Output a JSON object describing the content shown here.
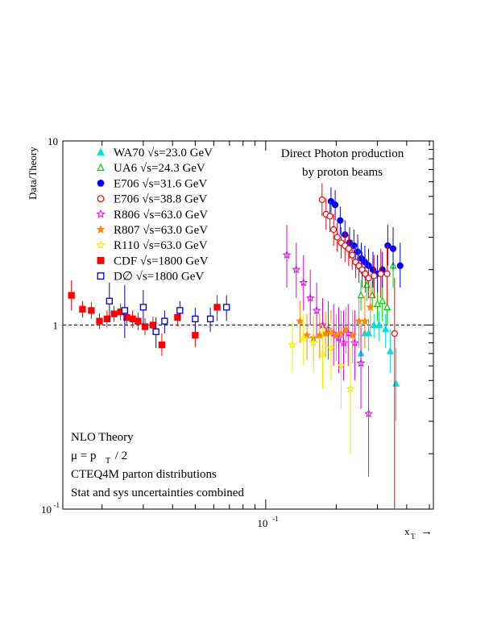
{
  "chart_data": {
    "type": "scatter",
    "title_lines": [
      "Direct Photon production",
      "by proton beams"
    ],
    "xlabel": "x",
    "xlabel_sub": "T",
    "xlabel_arrow": "→",
    "ylabel": "Data/Theory",
    "x_scale": "log",
    "y_scale": "log",
    "xlim": [
      0.0136,
      0.52
    ],
    "ylim": [
      0.1,
      10
    ],
    "y_ticks": [
      {
        "value": 10,
        "base": "10",
        "exp": ""
      },
      {
        "value": 1,
        "base": "1",
        "exp": ""
      },
      {
        "value": 0.1,
        "base": "10",
        "exp": "-1"
      }
    ],
    "x_ticks": [
      {
        "value": 0.1,
        "base": "10",
        "exp": "-1"
      }
    ],
    "reference_line": 1,
    "colors": {
      "cyan": "#00e0e0",
      "green": "#00cc00",
      "blue": "#0000ff",
      "red": "#ff0000",
      "magenta": "#dd00dd",
      "orange": "#ff8800",
      "yellow": "#eeee00",
      "darkblue": "#0000cc"
    },
    "annotations": [
      "NLO Theory",
      "μ = p",
      "T",
      " / 2",
      "CTEQ4M parton distributions",
      "Stat and sys uncertainties combined"
    ],
    "series": [
      {
        "name": "WA70 √s=23.0 GeV",
        "marker": "triangle",
        "filled": true,
        "color": "#00e0e0",
        "points": [
          [
            0.255,
            0.7,
            0.55,
            0.88
          ],
          [
            0.265,
            0.9,
            0.75,
            1.05
          ],
          [
            0.275,
            0.9,
            0.72,
            1.08
          ],
          [
            0.29,
            1.0,
            0.85,
            1.15
          ],
          [
            0.305,
            1.0,
            0.82,
            1.2
          ],
          [
            0.325,
            0.95,
            0.75,
            1.15
          ],
          [
            0.34,
            0.72,
            0.55,
            0.95
          ],
          [
            0.36,
            0.48,
            0.3,
            0.75
          ]
        ]
      },
      {
        "name": "UA6 √s=24.3 GeV",
        "marker": "triangle",
        "filled": false,
        "color": "#00cc00",
        "points": [
          [
            0.255,
            1.45,
            1.2,
            1.75
          ],
          [
            0.27,
            1.65,
            1.35,
            2.0
          ],
          [
            0.285,
            1.45,
            1.2,
            1.75
          ],
          [
            0.3,
            1.3,
            1.05,
            1.6
          ],
          [
            0.315,
            1.35,
            1.05,
            1.7
          ],
          [
            0.33,
            1.25,
            1.0,
            1.55
          ],
          [
            0.35,
            2.1,
            1.6,
            2.7
          ]
        ]
      },
      {
        "name": "E706 √s=31.6 GeV",
        "marker": "circle",
        "filled": true,
        "color": "#0000ff",
        "points": [
          [
            0.19,
            4.7,
            3.9,
            5.6
          ],
          [
            0.198,
            4.5,
            3.7,
            5.4
          ],
          [
            0.208,
            3.7,
            3.1,
            4.4
          ],
          [
            0.218,
            3.1,
            2.6,
            3.7
          ],
          [
            0.228,
            2.8,
            2.3,
            3.4
          ],
          [
            0.238,
            2.7,
            2.2,
            3.3
          ],
          [
            0.247,
            2.5,
            2.0,
            3.1
          ],
          [
            0.256,
            2.3,
            1.9,
            2.8
          ],
          [
            0.265,
            2.2,
            1.8,
            2.7
          ],
          [
            0.275,
            2.1,
            1.7,
            2.6
          ],
          [
            0.287,
            2.0,
            1.6,
            2.5
          ],
          [
            0.3,
            1.9,
            1.5,
            2.4
          ],
          [
            0.315,
            2.0,
            1.6,
            2.5
          ],
          [
            0.332,
            2.7,
            2.1,
            3.5
          ],
          [
            0.35,
            2.6,
            2.0,
            3.4
          ],
          [
            0.375,
            2.1,
            1.6,
            2.8
          ]
        ]
      },
      {
        "name": "E706 √s=38.8 GeV",
        "marker": "circle",
        "filled": false,
        "color": "#ff0000",
        "points": [
          [
            0.174,
            4.8,
            3.9,
            5.9
          ],
          [
            0.181,
            4.0,
            3.3,
            4.9
          ],
          [
            0.188,
            3.9,
            3.2,
            4.7
          ],
          [
            0.195,
            3.3,
            2.7,
            4.0
          ],
          [
            0.202,
            3.0,
            2.5,
            3.6
          ],
          [
            0.21,
            2.8,
            2.3,
            3.4
          ],
          [
            0.218,
            2.7,
            2.2,
            3.2
          ],
          [
            0.226,
            2.6,
            2.1,
            3.1
          ],
          [
            0.234,
            2.4,
            2.0,
            2.9
          ],
          [
            0.242,
            2.2,
            1.8,
            2.7
          ],
          [
            0.25,
            2.1,
            1.7,
            2.6
          ],
          [
            0.258,
            2.0,
            1.6,
            2.5
          ],
          [
            0.266,
            1.9,
            1.5,
            2.4
          ],
          [
            0.275,
            1.8,
            1.4,
            2.3
          ],
          [
            0.29,
            1.85,
            1.4,
            2.4
          ],
          [
            0.31,
            1.9,
            1.4,
            2.6
          ],
          [
            0.33,
            1.9,
            1.3,
            2.7
          ],
          [
            0.355,
            0.9,
            0.1,
            1.8
          ]
        ]
      },
      {
        "name": "R806 √s=63.0 GeV",
        "marker": "star",
        "filled": false,
        "color": "#dd00dd",
        "points": [
          [
            0.123,
            2.4,
            1.6,
            3.5
          ],
          [
            0.135,
            2.0,
            1.4,
            2.8
          ],
          [
            0.145,
            1.7,
            1.2,
            2.4
          ],
          [
            0.155,
            1.4,
            1.0,
            2.0
          ],
          [
            0.165,
            1.2,
            0.85,
            1.7
          ],
          [
            0.175,
            1.0,
            0.7,
            1.4
          ],
          [
            0.185,
            0.95,
            0.65,
            1.35
          ],
          [
            0.195,
            0.9,
            0.6,
            1.3
          ],
          [
            0.205,
            0.85,
            0.55,
            1.25
          ],
          [
            0.215,
            0.8,
            0.5,
            1.2
          ],
          [
            0.225,
            0.9,
            0.6,
            1.3
          ],
          [
            0.24,
            0.8,
            0.5,
            1.2
          ],
          [
            0.255,
            0.62,
            0.35,
            1.0
          ],
          [
            0.275,
            0.33,
            0.15,
            0.6
          ]
        ]
      },
      {
        "name": "R807 √s=63.0 GeV",
        "marker": "star",
        "filled": true,
        "color": "#ff8800",
        "points": [
          [
            0.14,
            1.05,
            0.8,
            1.35
          ],
          [
            0.15,
            0.88,
            0.65,
            1.15
          ],
          [
            0.16,
            0.85,
            0.62,
            1.12
          ],
          [
            0.17,
            0.88,
            0.66,
            1.15
          ],
          [
            0.18,
            0.9,
            0.67,
            1.18
          ],
          [
            0.19,
            0.92,
            0.68,
            1.2
          ],
          [
            0.2,
            0.88,
            0.64,
            1.15
          ],
          [
            0.21,
            0.9,
            0.65,
            1.2
          ],
          [
            0.22,
            0.95,
            0.7,
            1.25
          ],
          [
            0.235,
            0.88,
            0.62,
            1.2
          ],
          [
            0.25,
            1.05,
            0.75,
            1.4
          ],
          [
            0.265,
            1.05,
            0.75,
            1.45
          ],
          [
            0.28,
            1.25,
            0.9,
            1.7
          ]
        ]
      },
      {
        "name": "R110 √s=63.0 GeV",
        "marker": "star",
        "filled": false,
        "color": "#eeee00",
        "points": [
          [
            0.13,
            0.78,
            0.55,
            1.05
          ],
          [
            0.145,
            0.85,
            0.6,
            1.15
          ],
          [
            0.16,
            0.8,
            0.55,
            1.1
          ],
          [
            0.175,
            0.7,
            0.45,
            1.0
          ],
          [
            0.19,
            0.75,
            0.5,
            1.05
          ],
          [
            0.21,
            0.6,
            0.35,
            0.9
          ],
          [
            0.23,
            0.45,
            0.2,
            0.75
          ]
        ]
      },
      {
        "name": "CDF √s=1800 GeV",
        "marker": "square",
        "filled": true,
        "color": "#ff0000",
        "points": [
          [
            0.0148,
            1.45,
            1.2,
            1.75
          ],
          [
            0.0165,
            1.22,
            1.1,
            1.35
          ],
          [
            0.018,
            1.2,
            1.08,
            1.33
          ],
          [
            0.0195,
            1.05,
            0.95,
            1.16
          ],
          [
            0.021,
            1.08,
            0.97,
            1.2
          ],
          [
            0.0225,
            1.15,
            1.04,
            1.27
          ],
          [
            0.024,
            1.18,
            1.06,
            1.31
          ],
          [
            0.0255,
            1.1,
            0.99,
            1.22
          ],
          [
            0.027,
            1.08,
            0.97,
            1.2
          ],
          [
            0.0285,
            1.05,
            0.94,
            1.17
          ],
          [
            0.0305,
            0.98,
            0.88,
            1.09
          ],
          [
            0.033,
            1.0,
            0.9,
            1.11
          ],
          [
            0.036,
            0.78,
            0.68,
            0.9
          ],
          [
            0.042,
            1.1,
            0.98,
            1.23
          ],
          [
            0.05,
            0.88,
            0.76,
            1.02
          ],
          [
            0.062,
            1.25,
            1.05,
            1.45
          ]
        ]
      },
      {
        "name": "D∅ √s=1800 GeV",
        "marker": "square",
        "filled": false,
        "color": "#0000cc",
        "points": [
          [
            0.0215,
            1.35,
            1.05,
            1.7
          ],
          [
            0.025,
            1.2,
            0.85,
            1.65
          ],
          [
            0.03,
            1.25,
            1.0,
            1.55
          ],
          [
            0.034,
            0.92,
            0.75,
            1.1
          ],
          [
            0.037,
            1.05,
            0.9,
            1.2
          ],
          [
            0.043,
            1.2,
            1.05,
            1.35
          ],
          [
            0.05,
            1.08,
            0.92,
            1.24
          ],
          [
            0.058,
            1.08,
            0.92,
            1.24
          ],
          [
            0.068,
            1.25,
            1.05,
            1.45
          ]
        ]
      }
    ]
  }
}
